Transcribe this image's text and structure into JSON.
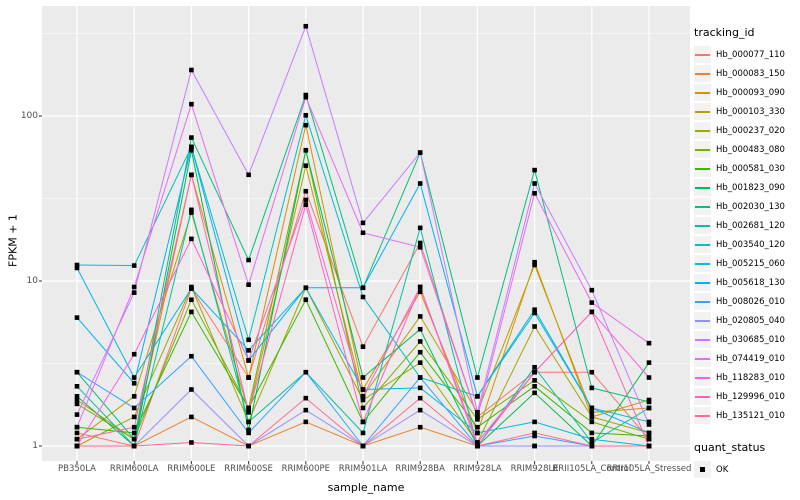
{
  "style": {
    "panel_bg": "#EBEBEB",
    "grid_color": "#FFFFFF",
    "tick_text_color": "#4D4D4D",
    "point_color": "#000000",
    "legend_key_bg": "#F2F2F2"
  },
  "chart_data": {
    "type": "line",
    "title": "",
    "xlabel": "sample_name",
    "ylabel": "FPKM + 1",
    "y_scale": "log10",
    "y_ticks": [
      1,
      10,
      100
    ],
    "y_tick_labels": [
      "1",
      "10",
      "100"
    ],
    "y_minor_ticks": [
      3.162,
      31.62,
      316.2
    ],
    "ylim": [
      0.81,
      450
    ],
    "grid": true,
    "legend_position": "right",
    "legend_title": "tracking_id",
    "legend_marker": "line",
    "x_categories": [
      "PB350LA",
      "RRIM600LA",
      "RRIM600LE",
      "RRIM600SE",
      "RRIM600PE",
      "RRIM901LA",
      "RRIM928BA",
      "RRIM928LA",
      "RRIM928LE",
      "RRII105LA_Control",
      "RRII105LA_Stressed"
    ],
    "series": [
      {
        "name": "Hb_000077_110",
        "color": "#F8766D",
        "values": [
          1.2,
          1.0,
          9.0,
          2.6,
          35,
          4.0,
          17,
          1.5,
          2.8,
          2.8,
          1.1
        ]
      },
      {
        "name": "Hb_000083_150",
        "color": "#EA8331",
        "values": [
          1.0,
          1.0,
          1.5,
          1.0,
          1.4,
          1.0,
          1.3,
          1.0,
          1.0,
          1.0,
          1.0
        ]
      },
      {
        "name": "Hb_000093_090",
        "color": "#D89000",
        "values": [
          1.9,
          1.1,
          44,
          2.6,
          88,
          2.2,
          8.6,
          1.2,
          13,
          1.5,
          1.9
        ]
      },
      {
        "name": "Hb_000103_330",
        "color": "#C09B00",
        "values": [
          1.1,
          2.0,
          26,
          1.6,
          50,
          2.0,
          6.1,
          1.6,
          12.5,
          1.6,
          1.7
        ]
      },
      {
        "name": "Hb_000237_020",
        "color": "#A3A500",
        "values": [
          1.0,
          1.5,
          9.2,
          1.4,
          9.1,
          1.9,
          3.2,
          1.05,
          5.3,
          1.5,
          1.2
        ]
      },
      {
        "name": "Hb_000483_080",
        "color": "#7CAE00",
        "values": [
          1.8,
          1.1,
          7.7,
          1.7,
          62,
          1.7,
          4.3,
          1.45,
          2.5,
          1.4,
          1.1
        ]
      },
      {
        "name": "Hb_000581_030",
        "color": "#39B600",
        "values": [
          1.3,
          1.2,
          6.5,
          1.7,
          7.7,
          1.4,
          3.7,
          1.3,
          2.3,
          1.2,
          1.15
        ]
      },
      {
        "name": "Hb_001823_090",
        "color": "#00BB4E",
        "values": [
          2.0,
          1.0,
          62,
          1.25,
          62,
          2.6,
          5.1,
          1.0,
          2.1,
          1.0,
          3.2
        ]
      },
      {
        "name": "Hb_002030_130",
        "color": "#00BF7D",
        "values": [
          2.8,
          1.1,
          74,
          13.4,
          134,
          9.1,
          60,
          2.6,
          47,
          2.25,
          1.85
        ]
      },
      {
        "name": "Hb_002681_120",
        "color": "#00C1A3",
        "values": [
          2.3,
          1.0,
          27,
          1.4,
          2.8,
          1.2,
          21,
          1.0,
          3.0,
          1.05,
          1.7
        ]
      },
      {
        "name": "Hb_003540_120",
        "color": "#00BFC4",
        "values": [
          12.5,
          12.4,
          65,
          4.4,
          101,
          8.0,
          2.6,
          2.0,
          6.7,
          1.7,
          1.4
        ]
      },
      {
        "name": "Hb_005215_060",
        "color": "#00BAE0",
        "values": [
          12.0,
          2.6,
          9.0,
          3.8,
          9.1,
          2.2,
          2.25,
          1.2,
          1.4,
          1.1,
          1.0
        ]
      },
      {
        "name": "Hb_005618_130",
        "color": "#00B0F6",
        "values": [
          6.0,
          2.4,
          65,
          3.3,
          9.1,
          9.1,
          39,
          2.0,
          6.4,
          1.7,
          1.2
        ]
      },
      {
        "name": "Hb_008026_010",
        "color": "#35A2FF",
        "values": [
          2.8,
          1.7,
          3.5,
          1.2,
          2.8,
          1.0,
          2.6,
          1.0,
          1.15,
          1.0,
          1.0
        ]
      },
      {
        "name": "Hb_020805_040",
        "color": "#9590FF",
        "values": [
          1.0,
          1.0,
          2.2,
          1.0,
          1.65,
          1.0,
          1.65,
          1.0,
          1.0,
          1.0,
          1.0
        ]
      },
      {
        "name": "Hb_030685_010",
        "color": "#C77CFF",
        "values": [
          1.55,
          8.5,
          190,
          44,
          350,
          22.5,
          60,
          1.6,
          39,
          8.8,
          1.35
        ]
      },
      {
        "name": "Hb_074419_010",
        "color": "#E76BF3",
        "values": [
          1.3,
          9.2,
          118,
          9.5,
          130,
          19.6,
          16,
          1.5,
          34,
          7.4,
          4.2
        ]
      },
      {
        "name": "Hb_118283_010",
        "color": "#FA62DB",
        "values": [
          1.0,
          3.6,
          18,
          3.3,
          31,
          2.0,
          9.2,
          1.05,
          2.8,
          6.5,
          2.6
        ]
      },
      {
        "name": "Hb_129996_010",
        "color": "#FF62BC",
        "values": [
          1.1,
          1.3,
          44,
          1.6,
          29,
          1.4,
          9.2,
          1.0,
          2.8,
          6.5,
          1.0
        ]
      },
      {
        "name": "Hb_135121_010",
        "color": "#FF6A98",
        "values": [
          1.0,
          1.0,
          1.05,
          1.0,
          1.95,
          1.0,
          1.95,
          1.0,
          1.2,
          1.0,
          1.0
        ]
      }
    ],
    "legend2_title": "quant_status",
    "legend2_items": [
      {
        "label": "OK",
        "marker": "black-square"
      }
    ]
  }
}
